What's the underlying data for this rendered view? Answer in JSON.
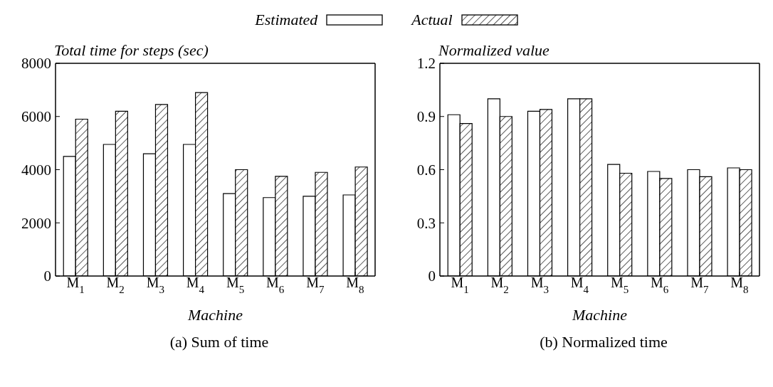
{
  "chart_data": [
    {
      "type": "bar",
      "title": "(a) Sum of time",
      "xlabel": "Machine",
      "ylabel": "Total time for steps (sec)",
      "categories": [
        "M$_{1}$",
        "M$_{2}$",
        "M$_{3}$",
        "M$_{4}$",
        "M$_{5}$",
        "M$_{6}$",
        "M$_{7}$",
        "M$_{8}$"
      ],
      "series": [
        {
          "name": "Estimated",
          "color": "#ffffff",
          "values": [
            4500,
            4950,
            4600,
            4950,
            3100,
            2950,
            3000,
            3050
          ]
        },
        {
          "name": "Actual",
          "color": "#000000",
          "values": [
            5900,
            6200,
            6450,
            6900,
            4000,
            3750,
            3900,
            4100
          ]
        }
      ],
      "ylim": [
        0,
        8000
      ],
      "yticks": [
        0,
        2000,
        4000,
        6000,
        8000
      ],
      "grid": false,
      "legend": "top"
    },
    {
      "type": "bar",
      "title": "(b) Normalized time",
      "xlabel": "Machine",
      "ylabel": "Normalized value",
      "categories": [
        "M$_{1}$",
        "M$_{2}$",
        "M$_{3}$",
        "M$_{4}$",
        "M$_{5}$",
        "M$_{6}$",
        "M$_{7}$",
        "M$_{8}$"
      ],
      "series": [
        {
          "color": "#ffffff",
          "values": [
            0.91,
            1.0,
            0.93,
            1.0,
            0.63,
            0.59,
            0.6,
            0.61
          ]
        },
        {
          "color": "#000000",
          "values": [
            0.86,
            0.9,
            0.94,
            1.0,
            0.58,
            0.55,
            0.56,
            0.6
          ]
        }
      ],
      "ylim": [
        0,
        1.2
      ],
      "yticks": [
        0,
        0.3,
        0.6,
        0.9,
        1.2
      ],
      "grid": false
    }
  ]
}
